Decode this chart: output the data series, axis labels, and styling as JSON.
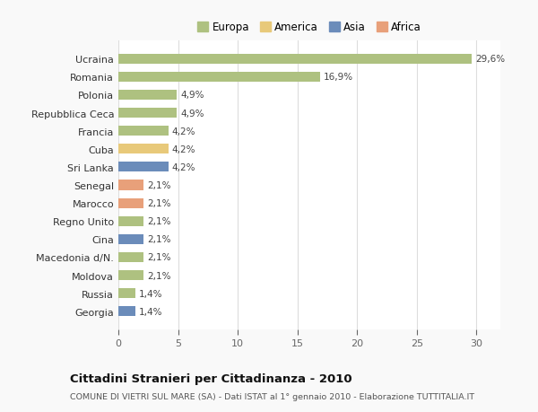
{
  "categories": [
    "Georgia",
    "Russia",
    "Moldova",
    "Macedonia d/N.",
    "Cina",
    "Regno Unito",
    "Marocco",
    "Senegal",
    "Sri Lanka",
    "Cuba",
    "Francia",
    "Repubblica Ceca",
    "Polonia",
    "Romania",
    "Ucraina"
  ],
  "values": [
    1.4,
    1.4,
    2.1,
    2.1,
    2.1,
    2.1,
    2.1,
    2.1,
    4.2,
    4.2,
    4.2,
    4.9,
    4.9,
    16.9,
    29.6
  ],
  "colors": [
    "#6b8cba",
    "#aec180",
    "#aec180",
    "#aec180",
    "#6b8cba",
    "#aec180",
    "#e8a07a",
    "#e8a07a",
    "#6b8cba",
    "#e8c97a",
    "#aec180",
    "#aec180",
    "#aec180",
    "#aec180",
    "#aec180"
  ],
  "labels": [
    "1,4%",
    "1,4%",
    "2,1%",
    "2,1%",
    "2,1%",
    "2,1%",
    "2,1%",
    "2,1%",
    "4,2%",
    "4,2%",
    "4,2%",
    "4,9%",
    "4,9%",
    "16,9%",
    "29,6%"
  ],
  "legend_labels": [
    "Europa",
    "America",
    "Asia",
    "Africa"
  ],
  "legend_colors": [
    "#aec180",
    "#e8c97a",
    "#6b8cba",
    "#e8a07a"
  ],
  "title": "Cittadini Stranieri per Cittadinanza - 2010",
  "subtitle": "COMUNE DI VIETRI SUL MARE (SA) - Dati ISTAT al 1° gennaio 2010 - Elaborazione TUTTITALIA.IT",
  "xlim": [
    0,
    32
  ],
  "xticks": [
    0,
    5,
    10,
    15,
    20,
    25,
    30
  ],
  "background_color": "#f9f9f9",
  "bar_background": "#ffffff",
  "grid_color": "#dddddd"
}
